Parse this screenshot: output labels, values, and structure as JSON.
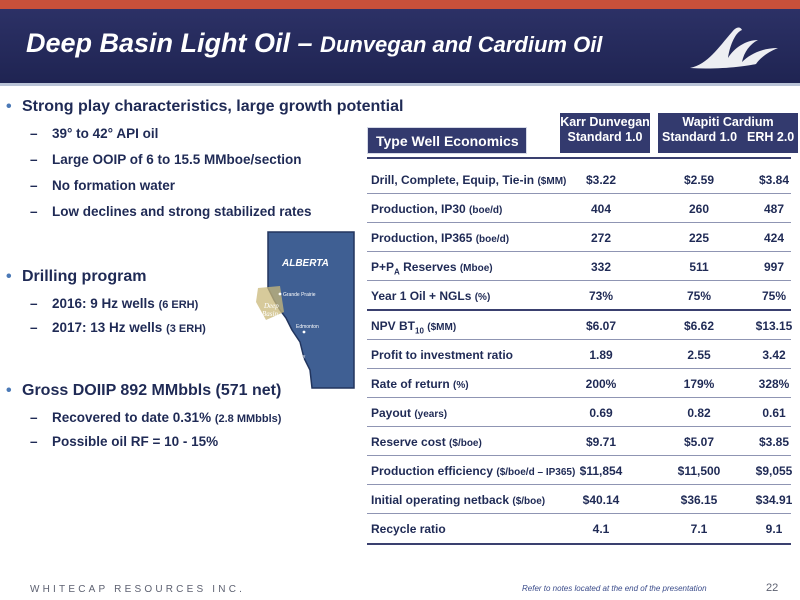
{
  "header": {
    "title_main": "Deep Basin Light Oil – ",
    "title_sub": "Dunvegan and Cardium Oil"
  },
  "bullets": [
    {
      "text": "Strong play characteristics, large growth potential",
      "subs": [
        {
          "text": "39° to 42° API oil",
          "small": ""
        },
        {
          "text": "Large OOIP of 6 to 15.5 MMboe/section",
          "small": ""
        },
        {
          "text": "No formation water",
          "small": ""
        },
        {
          "text": "Low declines and strong stabilized rates",
          "small": ""
        }
      ]
    },
    {
      "text": "Drilling program",
      "subs": [
        {
          "text": "2016:  9 Hz wells ",
          "small": "(6 ERH)"
        },
        {
          "text": "2017:  13 Hz wells ",
          "small": "(3 ERH)"
        }
      ]
    },
    {
      "text": "Gross DOIIP 892 MMbbls (571 net)",
      "subs": [
        {
          "text": "Recovered to date 0.31% ",
          "small": "(2.8 MMbbls)"
        },
        {
          "text": "Possible oil RF = 10 - 15%",
          "small": ""
        }
      ]
    }
  ],
  "map": {
    "region": "ALBERTA",
    "area": "Deep Basin",
    "area_line1": "Deep",
    "area_line2": "Basin",
    "cities": [
      "Grande Prairie",
      "Edmonton",
      "Calgary"
    ]
  },
  "table": {
    "title": "Type Well Economics",
    "groups": [
      {
        "line1": "Karr Dunvegan",
        "line2": "Standard 1.0"
      },
      {
        "line1": "Wapiti Cardium",
        "line2a": "Standard 1.0",
        "line2b": "ERH 2.0"
      }
    ],
    "rows": [
      {
        "label": "Drill, Complete, Equip, Tie-in ",
        "unit": "($MM)",
        "values": [
          "$3.22",
          "$2.59",
          "$3.84"
        ]
      },
      {
        "label": "Production, IP30 ",
        "unit": "(boe/d)",
        "values": [
          "404",
          "260",
          "487"
        ]
      },
      {
        "label": "Production, IP365 ",
        "unit": "(boe/d)",
        "values": [
          "272",
          "225",
          "424"
        ]
      },
      {
        "label": "P+P",
        "label_sub": "A",
        "label_rest": " Reserves ",
        "unit": "(Mboe)",
        "values": [
          "332",
          "511",
          "997"
        ]
      },
      {
        "label": "Year 1 Oil + NGLs ",
        "unit": "(%)",
        "values": [
          "73%",
          "75%",
          "75%"
        ]
      },
      {
        "label": "NPV BT",
        "label_sub": "10",
        "label_rest": " ",
        "unit": "($MM)",
        "values": [
          "$6.07",
          "$6.62",
          "$13.15"
        ]
      },
      {
        "label": "Profit to investment ratio",
        "unit": "",
        "values": [
          "1.89",
          "2.55",
          "3.42"
        ]
      },
      {
        "label": "Rate of return ",
        "unit": "(%)",
        "values": [
          "200%",
          "179%",
          "328%"
        ]
      },
      {
        "label": "Payout ",
        "unit": "(years)",
        "values": [
          "0.69",
          "0.82",
          "0.61"
        ]
      },
      {
        "label": "Reserve cost ",
        "unit": "($/boe)",
        "values": [
          "$9.71",
          "$5.07",
          "$3.85"
        ]
      },
      {
        "label": "Production efficiency ",
        "unit": "($/boe/d – IP365)",
        "values": [
          "$11,854",
          "$11,500",
          "$9,055"
        ]
      },
      {
        "label": "Initial operating netback ",
        "unit": "($/boe)",
        "values": [
          "$40.14",
          "$36.15",
          "$34.91"
        ]
      },
      {
        "label": "Recycle ratio",
        "unit": "",
        "values": [
          "4.1",
          "7.1",
          "9.1"
        ]
      }
    ]
  },
  "footer": {
    "company": "WHITECAP RESOURCES INC.",
    "note": "Refer to notes located at the end of the presentation",
    "page": "22"
  },
  "colors": {
    "header_bg": "#2c3166",
    "accent_stripe": "#c8503a",
    "table_header": "#333a6e",
    "map_fill": "#3f5f93"
  }
}
